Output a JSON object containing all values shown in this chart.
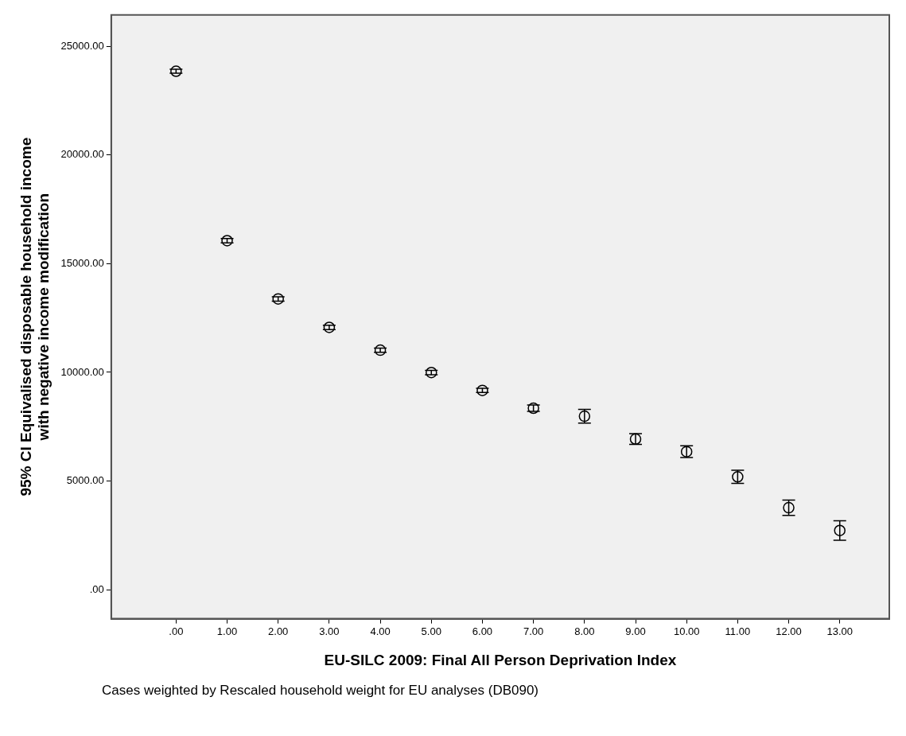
{
  "chart_data": {
    "type": "scatter",
    "xlabel": "EU-SILC 2009: Final All Person Deprivation Index",
    "ylabel": "95% CI Equivalised disposable household income with negative income modification",
    "annotations": [
      "Cases weighted by Rescaled household weight for EU analyses (DB090)"
    ],
    "x": [
      0,
      1,
      2,
      3,
      4,
      5,
      6,
      7,
      8,
      9,
      10,
      11,
      12,
      13
    ],
    "series": [
      {
        "color": "#000000",
        "values": [
          23860,
          16060,
          13380,
          12070,
          11020,
          9990,
          9170,
          8350,
          7980,
          6930,
          6350,
          5190,
          3770,
          2720
        ],
        "errors": [
          90,
          100,
          100,
          100,
          100,
          100,
          100,
          150,
          320,
          250,
          270,
          300,
          350,
          450
        ]
      }
    ],
    "marker": "circle",
    "grid": false,
    "xlim": [
      -1.27,
      13.97
    ],
    "xticks": [
      {
        "value": 0,
        "label": ".00"
      },
      {
        "value": 1,
        "label": "1.00"
      },
      {
        "value": 2,
        "label": "2.00"
      },
      {
        "value": 3,
        "label": "3.00"
      },
      {
        "value": 4,
        "label": "4.00"
      },
      {
        "value": 5,
        "label": "5.00"
      },
      {
        "value": 6,
        "label": "6.00"
      },
      {
        "value": 7,
        "label": "7.00"
      },
      {
        "value": 8,
        "label": "8.00"
      },
      {
        "value": 9,
        "label": "9.00"
      },
      {
        "value": 10,
        "label": "10.00"
      },
      {
        "value": 11,
        "label": "11.00"
      },
      {
        "value": 12,
        "label": "12.00"
      },
      {
        "value": 13,
        "label": "13.00"
      }
    ],
    "ylim": [
      -1340,
      26450
    ],
    "yticks": [
      {
        "value": 0,
        "label": ".00"
      },
      {
        "value": 5000,
        "label": "5000.00"
      },
      {
        "value": 10000,
        "label": "10000.00"
      },
      {
        "value": 15000,
        "label": "15000.00"
      },
      {
        "value": 20000,
        "label": "20000.00"
      },
      {
        "value": 25000,
        "label": "25000.00"
      }
    ]
  }
}
